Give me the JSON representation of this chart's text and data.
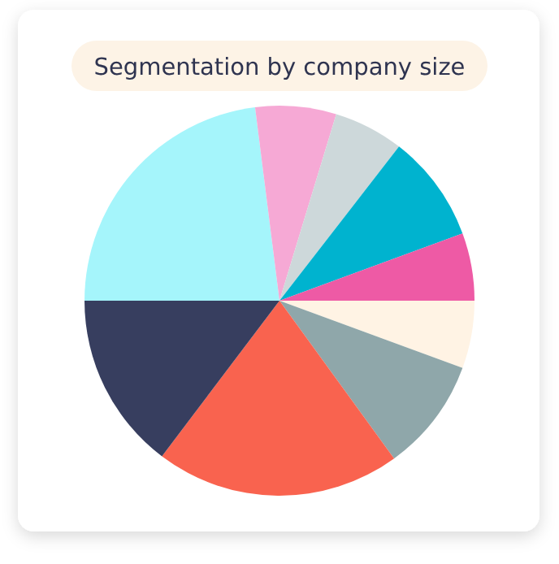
{
  "chart_data": {
    "type": "pie",
    "title": "Segmentation by company size",
    "categories": [
      null,
      null,
      null,
      null,
      null,
      null,
      null,
      null,
      null
    ],
    "values": [
      5.6,
      9.4,
      20.3,
      14.7,
      23,
      6.7,
      5.8,
      8.9,
      5.6
    ],
    "colors": [
      "#fff3e4",
      "#8fa7aa",
      "#f9634f",
      "#373e5f",
      "#a5f5fb",
      "#f6a9d5",
      "#cdd8da",
      "#00b3cf",
      "#ee5aa5"
    ]
  }
}
